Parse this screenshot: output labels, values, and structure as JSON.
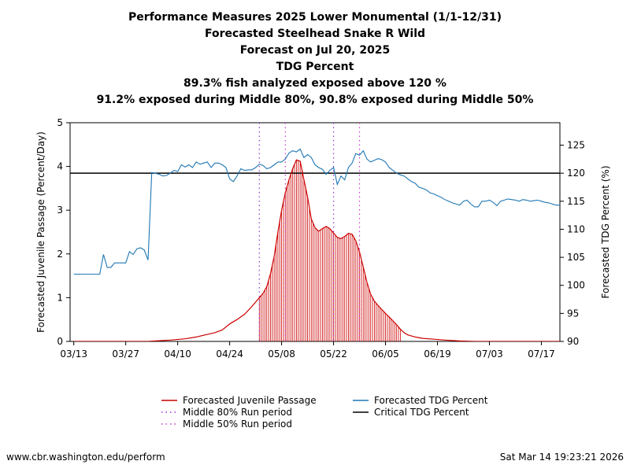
{
  "chart_data": {
    "type": "line",
    "title_lines": [
      "Performance Measures 2025 Lower Monumental (1/1-12/31)",
      "Forecasted Steelhead Snake R Wild",
      "Forecast on Jul 20, 2025",
      "TDG Percent",
      "89.3% fish analyzed exposed above 120 %",
      "91.2% exposed during Middle 80%, 90.8% exposed during Middle 50%"
    ],
    "x_tick_labels": [
      "03/13",
      "03/27",
      "04/10",
      "04/24",
      "05/08",
      "05/22",
      "06/05",
      "06/19",
      "07/03",
      "07/17"
    ],
    "x_tick_days": [
      0,
      14,
      28,
      42,
      56,
      70,
      84,
      98,
      112,
      126
    ],
    "x_range_days": [
      -1,
      131
    ],
    "ylabel_left": "Forecasted Juvenile Passage (Percent/Day)",
    "ylabel_right": "Forecasted TDG Percent (%)",
    "ylim_left": [
      0,
      5
    ],
    "ylim_right": [
      90,
      129
    ],
    "yticks_left": [
      "0",
      "1",
      "2",
      "3",
      "4",
      "5"
    ],
    "yticks_right": [
      "90",
      "95",
      "100",
      "105",
      "110",
      "115",
      "120",
      "125"
    ],
    "critical_tdg": 120,
    "middle_80_days": [
      50,
      70
    ],
    "middle_50_days": [
      57,
      77
    ],
    "series": [
      {
        "name": "Forecasted Juvenile Passage",
        "axis": "left",
        "color": "#cc0000",
        "fill_start_day": 50,
        "fill_end_day": 88,
        "points": [
          [
            0,
            0
          ],
          [
            20,
            0
          ],
          [
            22,
            0.01
          ],
          [
            26,
            0.03
          ],
          [
            30,
            0.06
          ],
          [
            33,
            0.1
          ],
          [
            36,
            0.16
          ],
          [
            38,
            0.2
          ],
          [
            40,
            0.26
          ],
          [
            42,
            0.4
          ],
          [
            44,
            0.5
          ],
          [
            46,
            0.62
          ],
          [
            48,
            0.8
          ],
          [
            50,
            1.0
          ],
          [
            51,
            1.1
          ],
          [
            52,
            1.25
          ],
          [
            53,
            1.55
          ],
          [
            54,
            1.95
          ],
          [
            55,
            2.5
          ],
          [
            56,
            3.0
          ],
          [
            57,
            3.4
          ],
          [
            58,
            3.7
          ],
          [
            59,
            3.95
          ],
          [
            60,
            4.15
          ],
          [
            61,
            4.12
          ],
          [
            62,
            3.7
          ],
          [
            63,
            3.3
          ],
          [
            64,
            2.8
          ],
          [
            65,
            2.6
          ],
          [
            66,
            2.52
          ],
          [
            67,
            2.58
          ],
          [
            68,
            2.63
          ],
          [
            69,
            2.58
          ],
          [
            70,
            2.48
          ],
          [
            71,
            2.38
          ],
          [
            72,
            2.35
          ],
          [
            73,
            2.4
          ],
          [
            74,
            2.47
          ],
          [
            75,
            2.45
          ],
          [
            76,
            2.3
          ],
          [
            77,
            2.05
          ],
          [
            78,
            1.7
          ],
          [
            79,
            1.35
          ],
          [
            80,
            1.08
          ],
          [
            81,
            0.92
          ],
          [
            82,
            0.82
          ],
          [
            83,
            0.73
          ],
          [
            84,
            0.64
          ],
          [
            85,
            0.56
          ],
          [
            86,
            0.47
          ],
          [
            87,
            0.38
          ],
          [
            88,
            0.28
          ],
          [
            89,
            0.2
          ],
          [
            90,
            0.15
          ],
          [
            92,
            0.1
          ],
          [
            94,
            0.07
          ],
          [
            97,
            0.05
          ],
          [
            100,
            0.03
          ],
          [
            104,
            0.01
          ],
          [
            108,
            0
          ],
          [
            131,
            0
          ]
        ]
      },
      {
        "name": "Forecasted TDG Percent",
        "axis": "right",
        "color": "#1f77b4",
        "points": [
          [
            0,
            102
          ],
          [
            7,
            102
          ],
          [
            8,
            105.5
          ],
          [
            9,
            103.2
          ],
          [
            10,
            103.2
          ],
          [
            11,
            104
          ],
          [
            14,
            104
          ],
          [
            15,
            106
          ],
          [
            16,
            105.5
          ],
          [
            17,
            106.5
          ],
          [
            18,
            106.7
          ],
          [
            19,
            106.3
          ],
          [
            20,
            104.5
          ],
          [
            21,
            120.1
          ],
          [
            22,
            120
          ],
          [
            23,
            119.8
          ],
          [
            24,
            119.5
          ],
          [
            25,
            119.6
          ],
          [
            26,
            120
          ],
          [
            27,
            120.5
          ],
          [
            28,
            120.3
          ],
          [
            29,
            121.5
          ],
          [
            30,
            121.1
          ],
          [
            31,
            121.5
          ],
          [
            32,
            121
          ],
          [
            33,
            122
          ],
          [
            34,
            121.6
          ],
          [
            35,
            121.8
          ],
          [
            36,
            122
          ],
          [
            37,
            121
          ],
          [
            38,
            121.8
          ],
          [
            39,
            121.8
          ],
          [
            40,
            121.5
          ],
          [
            41,
            121
          ],
          [
            42,
            119
          ],
          [
            43,
            118.5
          ],
          [
            44,
            119.5
          ],
          [
            45,
            120.8
          ],
          [
            46,
            120.5
          ],
          [
            47,
            120.6
          ],
          [
            48,
            120.6
          ],
          [
            49,
            121
          ],
          [
            50,
            121.6
          ],
          [
            51,
            121.4
          ],
          [
            52,
            120.8
          ],
          [
            53,
            121
          ],
          [
            54,
            121.5
          ],
          [
            55,
            122
          ],
          [
            56,
            122
          ],
          [
            57,
            122.5
          ],
          [
            58,
            123.6
          ],
          [
            59,
            124
          ],
          [
            60,
            123.8
          ],
          [
            61,
            124.3
          ],
          [
            62,
            122.8
          ],
          [
            63,
            123.3
          ],
          [
            64,
            122.8
          ],
          [
            65,
            121.5
          ],
          [
            66,
            121
          ],
          [
            67,
            120.7
          ],
          [
            68,
            119.8
          ],
          [
            69,
            120.5
          ],
          [
            70,
            121
          ],
          [
            71,
            118
          ],
          [
            72,
            119.5
          ],
          [
            73,
            118.8
          ],
          [
            74,
            121
          ],
          [
            75,
            121.8
          ],
          [
            76,
            123.5
          ],
          [
            77,
            123.2
          ],
          [
            78,
            124
          ],
          [
            79,
            122.5
          ],
          [
            80,
            122
          ],
          [
            81,
            122.3
          ],
          [
            82,
            122.6
          ],
          [
            83,
            122.4
          ],
          [
            84,
            122
          ],
          [
            85,
            121
          ],
          [
            86,
            120.5
          ],
          [
            87,
            120
          ],
          [
            88,
            119.7
          ],
          [
            89,
            119.5
          ],
          [
            90,
            119
          ],
          [
            91,
            118.5
          ],
          [
            92,
            118.2
          ],
          [
            93,
            117.5
          ],
          [
            94,
            117.3
          ],
          [
            95,
            117
          ],
          [
            96,
            116.5
          ],
          [
            97,
            116.3
          ],
          [
            98,
            116
          ],
          [
            99,
            115.7
          ],
          [
            100,
            115.3
          ],
          [
            101,
            115
          ],
          [
            102,
            114.7
          ],
          [
            103,
            114.5
          ],
          [
            104,
            114.3
          ],
          [
            105,
            115
          ],
          [
            106,
            115.2
          ],
          [
            107,
            114.5
          ],
          [
            108,
            114
          ],
          [
            109,
            114
          ],
          [
            110,
            115
          ],
          [
            111,
            115
          ],
          [
            112,
            115.2
          ],
          [
            113,
            114.8
          ],
          [
            114,
            114.2
          ],
          [
            115,
            115
          ],
          [
            116,
            115.2
          ],
          [
            117,
            115.4
          ],
          [
            118,
            115.3
          ],
          [
            119,
            115.2
          ],
          [
            120,
            115
          ],
          [
            121,
            115.3
          ],
          [
            122,
            115.2
          ],
          [
            123,
            115
          ],
          [
            124,
            115.1
          ],
          [
            125,
            115.2
          ],
          [
            126,
            115
          ],
          [
            127,
            114.8
          ],
          [
            128,
            114.7
          ],
          [
            129,
            114.5
          ],
          [
            130,
            114.3
          ],
          [
            131,
            114.3
          ]
        ]
      }
    ],
    "legend": [
      {
        "label": "Forecasted Juvenile Passage",
        "style": "line-red"
      },
      {
        "label": "Forecasted TDG Percent",
        "style": "line-blue"
      },
      {
        "label": "Middle 80% Run period",
        "style": "dot-purple"
      },
      {
        "label": "Critical TDG Percent",
        "style": "line-black"
      },
      {
        "label": "Middle 50% Run period",
        "style": "dot-magenta"
      }
    ]
  },
  "footer": {
    "left": "www.cbr.washington.edu/perform",
    "right": "Sat Mar 14 19:23:21 2026"
  }
}
